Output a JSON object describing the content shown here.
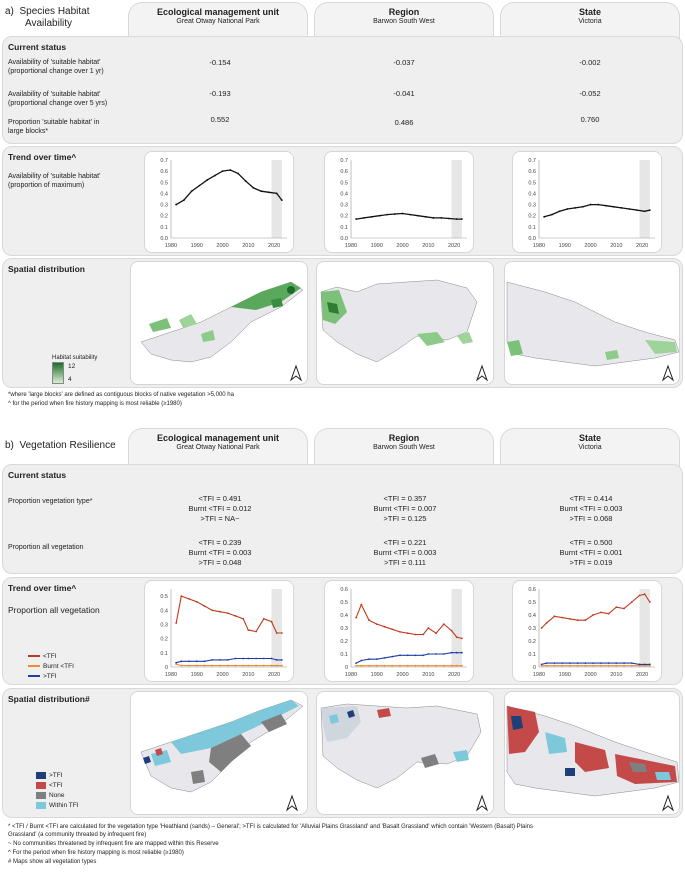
{
  "section_a": {
    "label": "a)",
    "title_line1": "Species Habitat",
    "title_line2": "Availability",
    "columns": [
      {
        "title": "Ecological management unit",
        "subtitle": "Great Otway National Park"
      },
      {
        "title": "Region",
        "subtitle": "Barwon South West"
      },
      {
        "title": "State",
        "subtitle": "Victoria"
      }
    ],
    "current_status": {
      "heading": "Current status",
      "rows": [
        {
          "label1": "Availability of 'suitable habitat'",
          "label2": "(proportional change over 1 yr)",
          "values": [
            "-0.154",
            "-0.037",
            "-0.002"
          ]
        },
        {
          "label1": "Availability of 'suitable habitat'",
          "label2": "(proportional change over 5 yrs)",
          "values": [
            "-0.193",
            "-0.041",
            "-0.052"
          ]
        },
        {
          "label1": "Proportion 'suitable habitat' in",
          "label2": "large blocks*",
          "values": [
            "0.552",
            "0.486",
            "0.760"
          ]
        }
      ]
    },
    "trend": {
      "heading": "Trend over time^",
      "label1": "Availability of 'suitable habitat'",
      "label2": "(proportion of maximum)"
    },
    "spatial": {
      "heading": "Spatial distribution",
      "legend_title": "Habitat suitability",
      "legend_high": "12",
      "legend_low": "4"
    },
    "footnotes": [
      "*where 'large blocks' are defined as contiguous blocks of native vegetation >5,000 ha",
      "^ for the period when fire history mapping is most reliable (≥1980)"
    ]
  },
  "section_b": {
    "label": "b)",
    "title": "Vegetation Resilience",
    "columns": [
      {
        "title": "Ecological management unit",
        "subtitle": "Great Otway National Park"
      },
      {
        "title": "Region",
        "subtitle": "Barwon South West"
      },
      {
        "title": "State",
        "subtitle": "Victoria"
      }
    ],
    "current_status": {
      "heading": "Current status",
      "rows": [
        {
          "label": "Proportion vegetation type*",
          "values": [
            [
              "<TFI = 0.491",
              "Burnt <TFI = 0.012",
              ">TFI = NA~"
            ],
            [
              "<TFI = 0.357",
              "Burnt <TFI = 0.007",
              ">TFI = 0.125"
            ],
            [
              "<TFI = 0.414",
              "Burnt <TFI = 0.003",
              ">TFI = 0.068"
            ]
          ]
        },
        {
          "label": "Proportion all vegetation",
          "values": [
            [
              "<TFI = 0.239",
              "Burnt <TFI = 0.003",
              ">TFI = 0.048"
            ],
            [
              "<TFI = 0.221",
              "Burnt <TFI = 0.003",
              ">TFI = 0.111"
            ],
            [
              "<TFI = 0.500",
              "Burnt <TFI = 0.001",
              ">TFI = 0.019"
            ]
          ]
        }
      ]
    },
    "trend": {
      "heading": "Trend over time^",
      "label": "Proportion all vegetation",
      "legend": [
        "<TFI",
        "Burnt <TFI",
        ">TFI"
      ]
    },
    "spatial": {
      "heading": "Spatial distribution#",
      "legend": [
        ">TFI",
        "<TFI",
        "None",
        "Within TFI"
      ]
    },
    "footnotes": [
      "* <TFI / Burnt <TFI are calculated for the vegetation type 'Heathland (sands) – General'; >TFI is calculated for 'Alluvial Plains Grassland' and 'Basalt Grassland' which contain 'Western (Basalt) Plains",
      "Grassland' (a community threated by infrequent fire)",
      "~ No communities threatened by infrequent fire are mapped within this Reserve",
      "^ For the period when fire history mapping is most reliable (≥1980)",
      "# Maps show all vegetation types"
    ]
  },
  "colors": {
    "habitat_line": "#111111",
    "lt_tfi": "#c0391b",
    "burnt_lt_tfi": "#f08a30",
    "gt_tfi": "#1f3fa3",
    "map_gt_tfi": "#1f3f7a",
    "map_lt_tfi": "#c44a4a",
    "map_none": "#7f7f7f",
    "map_within": "#7ec8dc"
  },
  "chart_data": [
    {
      "type": "line",
      "id": "a-emu",
      "x": [
        1982,
        1985,
        1988,
        1991,
        1994,
        1997,
        2000,
        2003,
        2006,
        2009,
        2012,
        2015,
        2018,
        2021,
        2023
      ],
      "series": [
        {
          "values": [
            0.3,
            0.34,
            0.42,
            0.47,
            0.52,
            0.56,
            0.6,
            0.61,
            0.58,
            0.51,
            0.45,
            0.42,
            0.41,
            0.4,
            0.34
          ]
        }
      ],
      "xticks": [
        "1980",
        "1990",
        "2000",
        "2010",
        "2020"
      ],
      "yticks": [
        "0.0",
        "0.1",
        "0.2",
        "0.3",
        "0.4",
        "0.5",
        "0.6",
        "0.7"
      ],
      "ylim": [
        0,
        0.7
      ],
      "xlim": [
        1980,
        2025
      ]
    },
    {
      "type": "line",
      "id": "a-region",
      "x": [
        1982,
        1985,
        1988,
        1991,
        1994,
        1997,
        2000,
        2003,
        2006,
        2009,
        2012,
        2015,
        2018,
        2021,
        2023
      ],
      "series": [
        {
          "values": [
            0.17,
            0.18,
            0.19,
            0.2,
            0.21,
            0.215,
            0.22,
            0.21,
            0.2,
            0.19,
            0.18,
            0.18,
            0.175,
            0.17,
            0.17
          ]
        }
      ],
      "xticks": [
        "1980",
        "1990",
        "2000",
        "2010",
        "2020"
      ],
      "yticks": [
        "0.0",
        "0.1",
        "0.2",
        "0.3",
        "0.4",
        "0.5",
        "0.6",
        "0.7"
      ],
      "ylim": [
        0,
        0.7
      ],
      "xlim": [
        1980,
        2025
      ]
    },
    {
      "type": "line",
      "id": "a-state",
      "x": [
        1982,
        1985,
        1988,
        1991,
        1994,
        1997,
        2000,
        2003,
        2006,
        2009,
        2012,
        2015,
        2018,
        2021,
        2023
      ],
      "series": [
        {
          "values": [
            0.19,
            0.21,
            0.24,
            0.26,
            0.27,
            0.28,
            0.3,
            0.3,
            0.29,
            0.28,
            0.27,
            0.26,
            0.25,
            0.24,
            0.25
          ]
        }
      ],
      "xticks": [
        "1980",
        "1990",
        "2000",
        "2010",
        "2020"
      ],
      "yticks": [
        "0.0",
        "0.1",
        "0.2",
        "0.3",
        "0.4",
        "0.5",
        "0.6",
        "0.7"
      ],
      "ylim": [
        0,
        0.7
      ],
      "xlim": [
        1980,
        2025
      ]
    },
    {
      "type": "line",
      "id": "b-emu",
      "x": [
        1982,
        1984,
        1987,
        1990,
        1993,
        1996,
        1999,
        2002,
        2005,
        2008,
        2010,
        2013,
        2016,
        2019,
        2021,
        2023
      ],
      "series": [
        {
          "name": "<TFI",
          "values": [
            0.31,
            0.5,
            0.48,
            0.46,
            0.43,
            0.4,
            0.39,
            0.38,
            0.36,
            0.34,
            0.26,
            0.25,
            0.34,
            0.32,
            0.24,
            0.24
          ]
        },
        {
          "name": "Burnt <TFI",
          "values": [
            0.02,
            0.01,
            0.01,
            0.01,
            0.01,
            0.01,
            0.01,
            0.01,
            0.01,
            0.01,
            0.01,
            0.01,
            0.01,
            0.01,
            0.01,
            0.01
          ]
        },
        {
          "name": ">TFI",
          "values": [
            0.03,
            0.04,
            0.04,
            0.04,
            0.04,
            0.05,
            0.05,
            0.05,
            0.06,
            0.06,
            0.06,
            0.06,
            0.06,
            0.06,
            0.05,
            0.05
          ]
        }
      ],
      "xticks": [
        "1980",
        "1990",
        "2000",
        "2010",
        "2020"
      ],
      "yticks": [
        "0",
        "0.1",
        "0.2",
        "0.3",
        "0.4",
        "0.5"
      ],
      "ylim": [
        0,
        0.55
      ],
      "xlim": [
        1980,
        2025
      ]
    },
    {
      "type": "line",
      "id": "b-region",
      "x": [
        1982,
        1984,
        1987,
        1990,
        1993,
        1996,
        1999,
        2002,
        2005,
        2008,
        2010,
        2013,
        2016,
        2019,
        2021,
        2023
      ],
      "series": [
        {
          "name": "<TFI",
          "values": [
            0.38,
            0.48,
            0.36,
            0.33,
            0.31,
            0.29,
            0.27,
            0.26,
            0.25,
            0.25,
            0.3,
            0.26,
            0.33,
            0.28,
            0.23,
            0.22
          ]
        },
        {
          "name": "Burnt <TFI",
          "values": [
            0.01,
            0.01,
            0.01,
            0.01,
            0.01,
            0.01,
            0.01,
            0.01,
            0.01,
            0.01,
            0.01,
            0.01,
            0.01,
            0.01,
            0.01,
            0.01
          ]
        },
        {
          "name": ">TFI",
          "values": [
            0.03,
            0.05,
            0.06,
            0.06,
            0.07,
            0.08,
            0.09,
            0.09,
            0.09,
            0.09,
            0.1,
            0.1,
            0.1,
            0.11,
            0.11,
            0.11
          ]
        }
      ],
      "xticks": [
        "1980",
        "1990",
        "2000",
        "2010",
        "2020"
      ],
      "yticks": [
        "0",
        "0.1",
        "0.2",
        "0.3",
        "0.4",
        "0.5",
        "0.6"
      ],
      "ylim": [
        0,
        0.6
      ],
      "xlim": [
        1980,
        2025
      ]
    },
    {
      "type": "line",
      "id": "b-state",
      "x": [
        1981,
        1983,
        1986,
        1989,
        1992,
        1995,
        1998,
        2001,
        2004,
        2007,
        2010,
        2013,
        2016,
        2019,
        2021,
        2023
      ],
      "series": [
        {
          "name": "<TFI",
          "values": [
            0.3,
            0.34,
            0.39,
            0.38,
            0.37,
            0.36,
            0.36,
            0.4,
            0.42,
            0.41,
            0.46,
            0.45,
            0.5,
            0.55,
            0.56,
            0.5
          ]
        },
        {
          "name": "Burnt <TFI",
          "values": [
            0.01,
            0.01,
            0.01,
            0.01,
            0.01,
            0.01,
            0.01,
            0.01,
            0.01,
            0.01,
            0.01,
            0.01,
            0.01,
            0.01,
            0.01,
            0.01
          ]
        },
        {
          "name": ">TFI",
          "values": [
            0.02,
            0.03,
            0.03,
            0.03,
            0.03,
            0.03,
            0.03,
            0.03,
            0.03,
            0.03,
            0.03,
            0.03,
            0.03,
            0.02,
            0.02,
            0.02
          ]
        }
      ],
      "xticks": [
        "1980",
        "1990",
        "2000",
        "2010",
        "2020"
      ],
      "yticks": [
        "0",
        "0.1",
        "0.2",
        "0.3",
        "0.4",
        "0.5",
        "0.6"
      ],
      "ylim": [
        0,
        0.6
      ],
      "xlim": [
        1980,
        2025
      ]
    }
  ]
}
